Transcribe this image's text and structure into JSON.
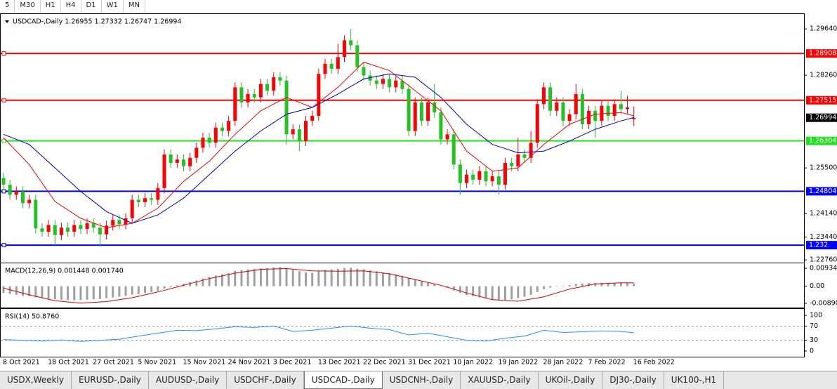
{
  "toolbar": [
    "5",
    "M30",
    "H1",
    "H4",
    "D1",
    "W1",
    "MN"
  ],
  "tabs": [
    "USDX,Weekly",
    "EURUSD-,Daily",
    "AUDUSD-,Daily",
    "USDCHF-,Daily",
    "USDCAD-,Daily",
    "USDCNH-,Daily",
    "XAUUSD-,Daily",
    "UKOil-,Daily",
    "DJ30-,Daily",
    "UK100-,H1"
  ],
  "active_tab": 4,
  "chart_data": [
    {
      "type": "candlestick",
      "title": "USDCAD-,Daily  1.26955 1.27332 1.26747 1.26994",
      "categories": [
        "8 Oct 2021",
        null,
        null,
        null,
        null,
        null,
        null,
        "18 Oct 2021",
        null,
        null,
        null,
        null,
        null,
        null,
        "27 Oct 2021",
        null,
        null,
        null,
        null,
        null,
        null,
        "5 Nov 2021",
        null,
        null,
        null,
        null,
        null,
        null,
        "15 Nov 2021",
        null,
        null,
        null,
        null,
        null,
        null,
        "24 Nov 2021",
        null,
        null,
        null,
        null,
        null,
        null,
        "3 Dec 2021",
        null,
        null,
        null,
        null,
        null,
        null,
        "13 Dec 2021",
        null,
        null,
        null,
        null,
        null,
        null,
        "22 Dec 2021",
        null,
        null,
        null,
        null,
        null,
        null,
        "31 Dec 2021",
        null,
        null,
        null,
        null,
        null,
        null,
        "10 Jan 2022",
        null,
        null,
        null,
        null,
        null,
        null,
        "19 Jan 2022",
        null,
        null,
        null,
        null,
        null,
        null,
        "28 Jan 2022",
        null,
        null,
        null,
        null,
        null,
        null,
        "7 Feb 2022",
        null,
        null,
        null,
        null,
        null,
        null,
        "16 Feb 2022"
      ],
      "open": [
        1.252,
        1.25,
        1.247,
        1.248,
        1.2445,
        1.2455,
        1.237,
        1.236,
        1.238,
        1.235,
        1.2372,
        1.236,
        1.238,
        1.2368,
        1.2385,
        1.2372,
        1.2352,
        1.2378,
        1.2395,
        1.2382,
        1.24,
        1.2455,
        1.2448,
        1.246,
        1.2455,
        1.249,
        1.259,
        1.2565,
        1.2575,
        1.2555,
        1.258,
        1.261,
        1.264,
        1.2625,
        1.267,
        1.266,
        1.269,
        1.279,
        1.2745,
        1.277,
        1.276,
        1.28,
        1.278,
        1.282,
        1.281,
        1.265,
        1.2665,
        1.263,
        1.269,
        1.2705,
        1.283,
        1.286,
        1.2845,
        1.288,
        1.293,
        1.2915,
        1.285,
        1.2825,
        1.281,
        1.28,
        1.2815,
        1.279,
        1.281,
        1.2785,
        1.266,
        1.2745,
        1.269,
        1.2745,
        1.2715,
        1.2635,
        1.265,
        1.256,
        1.2505,
        1.253,
        1.2515,
        1.254,
        1.251,
        1.2525,
        1.25,
        1.2565,
        1.2555,
        1.259,
        1.258,
        1.2625,
        1.274,
        1.279,
        1.272,
        1.2745,
        1.269,
        1.271,
        1.277,
        1.268,
        1.272,
        1.269,
        1.2735,
        1.2705,
        1.274,
        1.2725,
        1.26955
      ],
      "high": [
        1.2535,
        1.2515,
        1.2495,
        1.2495,
        1.247,
        1.247,
        1.2385,
        1.2395,
        1.2395,
        1.2387,
        1.2387,
        1.2395,
        1.2395,
        1.24,
        1.24,
        1.2387,
        1.2393,
        1.241,
        1.241,
        1.2415,
        1.247,
        1.247,
        1.2475,
        1.2475,
        1.2505,
        1.2605,
        1.2605,
        1.259,
        1.259,
        1.2595,
        1.2625,
        1.2655,
        1.2655,
        1.2685,
        1.2685,
        1.2705,
        1.2805,
        1.2805,
        1.2785,
        1.2785,
        1.2815,
        1.2815,
        1.2835,
        1.2835,
        1.2825,
        1.268,
        1.268,
        1.2705,
        1.272,
        1.2845,
        1.2875,
        1.2875,
        1.292,
        1.2945,
        1.2964,
        1.293,
        1.2865,
        1.284,
        1.2825,
        1.283,
        1.283,
        1.2825,
        1.2825,
        1.28,
        1.276,
        1.276,
        1.276,
        1.28,
        1.273,
        1.2665,
        1.2665,
        1.2575,
        1.2545,
        1.2545,
        1.2555,
        1.2555,
        1.254,
        1.254,
        1.258,
        1.258,
        1.264,
        1.2605,
        1.266,
        1.2755,
        1.2805,
        1.2805,
        1.276,
        1.276,
        1.2725,
        1.28,
        1.2785,
        1.2735,
        1.2735,
        1.275,
        1.275,
        1.2755,
        1.278,
        1.2765,
        1.27332
      ],
      "low": [
        1.2485,
        1.2455,
        1.2455,
        1.243,
        1.243,
        1.2355,
        1.2345,
        1.2345,
        1.232,
        1.2335,
        1.2345,
        1.2345,
        1.2353,
        1.2353,
        1.2357,
        1.2315,
        1.2337,
        1.2363,
        1.2367,
        1.2367,
        1.2385,
        1.2433,
        1.2433,
        1.244,
        1.244,
        1.2475,
        1.255,
        1.255,
        1.254,
        1.254,
        1.2565,
        1.2595,
        1.261,
        1.261,
        1.2645,
        1.2645,
        1.2675,
        1.273,
        1.273,
        1.2745,
        1.2745,
        1.2765,
        1.2765,
        1.2795,
        1.262,
        1.2635,
        1.26,
        1.2615,
        1.2675,
        1.269,
        1.2815,
        1.283,
        1.283,
        1.2865,
        1.29,
        1.2835,
        1.281,
        1.2795,
        1.2785,
        1.2785,
        1.2775,
        1.2775,
        1.277,
        1.2645,
        1.2645,
        1.2675,
        1.2675,
        1.27,
        1.262,
        1.262,
        1.2545,
        1.247,
        1.249,
        1.25,
        1.25,
        1.2495,
        1.2495,
        1.247,
        1.2485,
        1.254,
        1.254,
        1.2565,
        1.2565,
        1.261,
        1.2725,
        1.2705,
        1.2705,
        1.2675,
        1.2675,
        1.2695,
        1.2665,
        1.2665,
        1.264,
        1.2675,
        1.269,
        1.269,
        1.271,
        1.271,
        1.26747
      ],
      "close": [
        1.25,
        1.247,
        1.248,
        1.2445,
        1.2455,
        1.237,
        1.236,
        1.238,
        1.235,
        1.2372,
        1.236,
        1.238,
        1.2368,
        1.2385,
        1.2372,
        1.2352,
        1.2378,
        1.2395,
        1.2382,
        1.24,
        1.2455,
        1.2448,
        1.246,
        1.2455,
        1.249,
        1.259,
        1.2565,
        1.2575,
        1.2555,
        1.258,
        1.261,
        1.264,
        1.2625,
        1.267,
        1.266,
        1.269,
        1.279,
        1.2745,
        1.277,
        1.276,
        1.28,
        1.278,
        1.282,
        1.281,
        1.265,
        1.2665,
        1.263,
        1.269,
        1.2705,
        1.283,
        1.286,
        1.2845,
        1.288,
        1.293,
        1.2915,
        1.285,
        1.2825,
        1.281,
        1.28,
        1.2815,
        1.279,
        1.281,
        1.2785,
        1.266,
        1.2745,
        1.269,
        1.2745,
        1.2715,
        1.2635,
        1.265,
        1.256,
        1.2505,
        1.253,
        1.2515,
        1.254,
        1.251,
        1.2525,
        1.25,
        1.2565,
        1.2555,
        1.259,
        1.258,
        1.2625,
        1.274,
        1.279,
        1.272,
        1.2745,
        1.269,
        1.271,
        1.277,
        1.268,
        1.272,
        1.269,
        1.2735,
        1.2705,
        1.274,
        1.2725,
        1.273,
        1.26994
      ],
      "up_color": "#ff0000",
      "down_color": "#22c322",
      "series": [
        {
          "color": "#ff0000",
          "x": [
            0,
            4,
            8,
            12,
            16,
            20,
            24,
            28,
            32,
            36,
            40,
            44,
            48,
            52,
            56,
            60,
            64,
            68,
            72,
            76,
            80,
            84,
            88,
            92,
            96,
            98
          ],
          "values": [
            1.264,
            1.256,
            1.245,
            1.24,
            1.2372,
            1.2385,
            1.243,
            1.251,
            1.257,
            1.265,
            1.272,
            1.276,
            1.273,
            1.279,
            1.2865,
            1.284,
            1.278,
            1.272,
            1.26,
            1.254,
            1.255,
            1.262,
            1.268,
            1.271,
            1.2715,
            1.2705
          ]
        },
        {
          "color": "#0000b0",
          "x": [
            0,
            4,
            8,
            12,
            16,
            20,
            24,
            28,
            32,
            36,
            40,
            44,
            48,
            52,
            56,
            60,
            64,
            68,
            72,
            76,
            80,
            84,
            88,
            92,
            96,
            98
          ],
          "values": [
            1.265,
            1.262,
            1.255,
            1.248,
            1.242,
            1.2385,
            1.241,
            1.246,
            1.253,
            1.26,
            1.266,
            1.271,
            1.273,
            1.277,
            1.2815,
            1.283,
            1.282,
            1.276,
            1.268,
            1.262,
            1.2595,
            1.26,
            1.263,
            1.2665,
            1.269,
            1.27
          ]
        }
      ],
      "levels": [
        {
          "value": 1.28908,
          "color": "#ff0000"
        },
        {
          "value": 1.27515,
          "color": "#ff0000"
        },
        {
          "value": 1.26304,
          "color": "#22e022"
        },
        {
          "value": 1.24804,
          "color": "#0000ff"
        },
        {
          "value": 1.232,
          "color": "#0000ff"
        }
      ],
      "ylim": [
        1.2268,
        1.3004
      ],
      "yticks": [
        {
          "value": 1.2964,
          "label": "1.29640"
        },
        {
          "value": 1.2826,
          "label": "1.28260"
        },
        {
          "value": 1.255,
          "label": "1.25500"
        },
        {
          "value": 1.2414,
          "label": "1.24140"
        },
        {
          "value": 1.2344,
          "label": "1.23440"
        },
        {
          "value": 1.2276,
          "label": "1.22760"
        }
      ]
    },
    {
      "type": "macd",
      "title": "MACD(12,26,9) 0.001448 0.001740",
      "color": "#a0a0a0",
      "values": [
        -0.0035,
        -0.004,
        -0.0045,
        -0.005,
        -0.0052,
        -0.0058,
        -0.0062,
        -0.0065,
        -0.0068,
        -0.007,
        -0.0072,
        -0.0073,
        -0.0072,
        -0.007,
        -0.0068,
        -0.0066,
        -0.0062,
        -0.0058,
        -0.0054,
        -0.005,
        -0.0044,
        -0.004,
        -0.0035,
        -0.003,
        -0.0024,
        -0.0012,
        -0.0005,
        0.0005,
        0.0012,
        0.002,
        0.003,
        0.004,
        0.0048,
        0.0056,
        0.0062,
        0.0068,
        0.008,
        0.0085,
        0.0088,
        0.009,
        0.0093,
        0.0095,
        0.0098,
        0.01,
        0.009,
        0.0085,
        0.0078,
        0.0072,
        0.007,
        0.0078,
        0.0085,
        0.0088,
        0.009,
        0.0095,
        0.0096,
        0.0092,
        0.0088,
        0.0082,
        0.0078,
        0.0072,
        0.0068,
        0.0062,
        0.0055,
        0.0042,
        0.0035,
        0.0025,
        0.0018,
        0.0012,
        0.0002,
        -0.0008,
        -0.0022,
        -0.0035,
        -0.0045,
        -0.0052,
        -0.0058,
        -0.0065,
        -0.007,
        -0.0075,
        -0.0072,
        -0.0068,
        -0.0062,
        -0.0055,
        -0.0045,
        -0.003,
        -0.0015,
        -0.0008,
        -0.0002,
        0.0002,
        0.0006,
        0.0012,
        0.0014,
        0.0016,
        0.0018,
        0.0017,
        0.0015,
        0.0016,
        0.0017,
        0.0016,
        0.001448
      ],
      "series": [
        {
          "color": "#d00000",
          "x": [
            0,
            4,
            8,
            12,
            16,
            20,
            24,
            28,
            32,
            36,
            40,
            44,
            48,
            52,
            56,
            60,
            64,
            68,
            72,
            76,
            80,
            84,
            88,
            92,
            96,
            98
          ],
          "values": [
            -0.001,
            -0.0045,
            -0.0075,
            -0.0088,
            -0.008,
            -0.006,
            -0.003,
            0.0005,
            0.004,
            0.0068,
            0.0088,
            0.0092,
            0.008,
            0.0078,
            0.008,
            0.0065,
            0.0035,
            0.0005,
            -0.0035,
            -0.007,
            -0.0078,
            -0.0055,
            -0.0015,
            0.0012,
            0.0018,
            0.00174
          ]
        }
      ],
      "ylim": [
        -0.0111,
        0.0112
      ],
      "yticks": [
        0.009345,
        {
          "value": 0,
          "label": "0.00"
        },
        -0.008902
      ]
    },
    {
      "type": "line",
      "title": "RSI(14) 50.8760",
      "series": [
        {
          "color": "#1e90ff",
          "x": [
            0,
            3,
            6,
            9,
            12,
            15,
            18,
            21,
            24,
            27,
            30,
            33,
            36,
            39,
            42,
            45,
            48,
            51,
            54,
            57,
            60,
            63,
            66,
            69,
            72,
            75,
            78,
            81,
            84,
            87,
            90,
            93,
            96,
            98
          ],
          "values": [
            32,
            30,
            28,
            31,
            27,
            30,
            33,
            42,
            50,
            58,
            57,
            62,
            68,
            66,
            70,
            55,
            58,
            64,
            70,
            64,
            60,
            45,
            50,
            40,
            30,
            28,
            36,
            42,
            58,
            52,
            54,
            56,
            55,
            50.876
          ]
        }
      ],
      "levels": [
        70,
        30
      ],
      "ylim": [
        -16,
        114
      ],
      "yticks": [
        100,
        70,
        30,
        0
      ]
    }
  ]
}
